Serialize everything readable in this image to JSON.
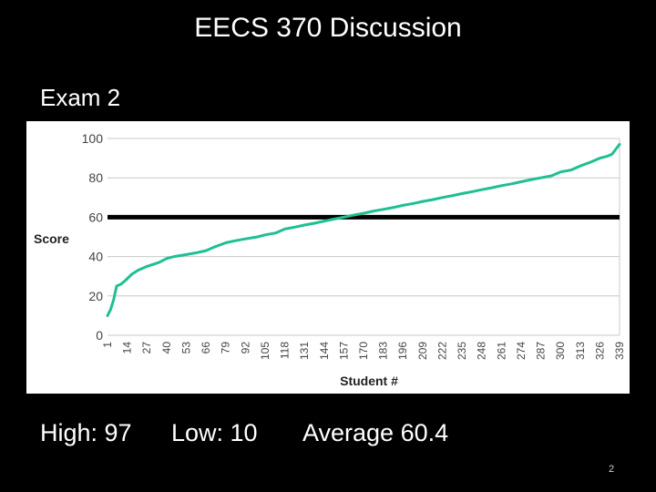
{
  "slide": {
    "title": "EECS 370 Discussion",
    "subtitle": "Exam 2",
    "stats": {
      "high": "High: 97",
      "low": "Low: 10",
      "average": "Average 60.4"
    },
    "page_number": "2"
  },
  "chart_data": {
    "type": "line",
    "title": "",
    "xlabel": "Student #",
    "ylabel": "Score",
    "ylim": [
      0,
      100
    ],
    "xlim": [
      1,
      339
    ],
    "yticks": [
      "0",
      "20",
      "40",
      "60",
      "80",
      "100"
    ],
    "xticks": [
      "1",
      "14",
      "27",
      "40",
      "53",
      "66",
      "79",
      "92",
      "105",
      "118",
      "131",
      "144",
      "157",
      "170",
      "183",
      "196",
      "209",
      "222",
      "235",
      "248",
      "261",
      "274",
      "287",
      "300",
      "313",
      "326",
      "339"
    ],
    "grid": true,
    "reference_line": {
      "y": 60,
      "color": "#000000"
    },
    "series": [
      {
        "color": "#1fbf93",
        "x": [
          1,
          3,
          5,
          7,
          10,
          13,
          17,
          21,
          27,
          35,
          40,
          45,
          53,
          60,
          66,
          72,
          79,
          85,
          92,
          100,
          105,
          112,
          118,
          125,
          131,
          138,
          144,
          150,
          157,
          163,
          170,
          176,
          183,
          190,
          196,
          203,
          209,
          216,
          222,
          229,
          235,
          242,
          248,
          255,
          261,
          268,
          274,
          280,
          287,
          294,
          300,
          307,
          313,
          320,
          326,
          331,
          334,
          336,
          338,
          339
        ],
        "y": [
          10,
          13,
          18,
          25,
          26,
          28,
          31,
          33,
          35,
          37,
          39,
          40,
          41,
          42,
          43,
          45,
          47,
          48,
          49,
          50,
          51,
          52,
          54,
          55,
          56,
          57,
          58,
          59,
          60,
          61,
          62,
          63,
          64,
          65,
          66,
          67,
          68,
          69,
          70,
          71,
          72,
          73,
          74,
          75,
          76,
          77,
          78,
          79,
          80,
          81,
          83,
          84,
          86,
          88,
          90,
          91,
          92,
          94,
          96,
          97
        ]
      }
    ]
  }
}
